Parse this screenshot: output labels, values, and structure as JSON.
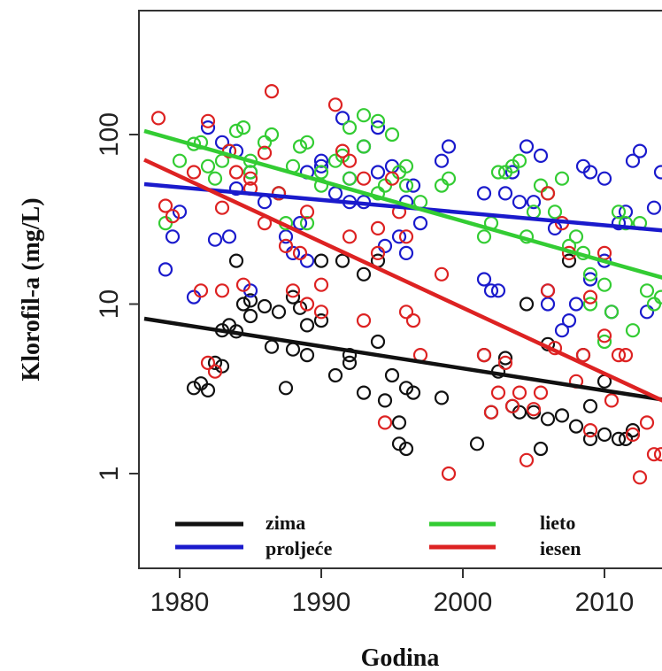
{
  "chart_data": {
    "type": "scatter",
    "title": "",
    "xlabel": "Godina",
    "ylabel": "Klorofil-a (mg/L)",
    "y_scale": "log",
    "xlim": [
      1977.5,
      2014.5
    ],
    "ylim": [
      0.3,
      700
    ],
    "x_ticks": [
      1980,
      1990,
      2000,
      2010
    ],
    "y_ticks": [
      1,
      10,
      100
    ],
    "grid": false,
    "legend_position": "bottom",
    "series": [
      {
        "name": "zima",
        "color": "#111111",
        "trend": {
          "x": [
            1977.5,
            2014.5
          ],
          "y": [
            8.2,
            2.7
          ]
        },
        "points": [
          [
            1981,
            3.2
          ],
          [
            1981.5,
            3.4
          ],
          [
            1982,
            3.1
          ],
          [
            1982.5,
            4.5
          ],
          [
            1983,
            4.3
          ],
          [
            1983,
            7
          ],
          [
            1983.5,
            7.5
          ],
          [
            1984,
            18
          ],
          [
            1984,
            6.9
          ],
          [
            1984.5,
            10
          ],
          [
            1985,
            8.5
          ],
          [
            1985,
            10.5
          ],
          [
            1986,
            9.7
          ],
          [
            1986.5,
            5.6
          ],
          [
            1987,
            9
          ],
          [
            1987.5,
            3.2
          ],
          [
            1988,
            11
          ],
          [
            1988,
            5.4
          ],
          [
            1988.5,
            9.5
          ],
          [
            1989,
            7.5
          ],
          [
            1989,
            5
          ],
          [
            1990,
            8
          ],
          [
            1990,
            18
          ],
          [
            1991,
            3.8
          ],
          [
            1991.5,
            18
          ],
          [
            1992,
            5
          ],
          [
            1992,
            4.5
          ],
          [
            1993,
            15
          ],
          [
            1993,
            3
          ],
          [
            1994,
            6
          ],
          [
            1994,
            18
          ],
          [
            1994.5,
            2.7
          ],
          [
            1995,
            3.8
          ],
          [
            1995.5,
            2
          ],
          [
            1995.5,
            1.5
          ],
          [
            1996,
            3.2
          ],
          [
            1996,
            1.4
          ],
          [
            1996.5,
            3
          ],
          [
            1998.5,
            2.8
          ],
          [
            2001,
            1.5
          ],
          [
            2001.5,
            5
          ],
          [
            2002,
            2.3
          ],
          [
            2002.5,
            4
          ],
          [
            2003,
            4.8
          ],
          [
            2003.5,
            2.5
          ],
          [
            2004,
            2.3
          ],
          [
            2004.5,
            10
          ],
          [
            2005,
            2.3
          ],
          [
            2005.5,
            1.4
          ],
          [
            2006,
            5.8
          ],
          [
            2006,
            2.1
          ],
          [
            2007,
            2.2
          ],
          [
            2007.5,
            18
          ],
          [
            2008,
            1.9
          ],
          [
            2008.5,
            5
          ],
          [
            2009,
            2.5
          ],
          [
            2009,
            1.6
          ],
          [
            2010,
            3.5
          ],
          [
            2010,
            1.7
          ],
          [
            2011,
            1.6
          ],
          [
            2011.5,
            1.6
          ],
          [
            2012,
            1.8
          ]
        ]
      },
      {
        "name": "proljeće",
        "color": "#1a1acc",
        "trend": {
          "x": [
            1977.5,
            2014.5
          ],
          "y": [
            51,
            27
          ]
        },
        "points": [
          [
            1979,
            16
          ],
          [
            1979.5,
            25
          ],
          [
            1980,
            35
          ],
          [
            1981,
            11
          ],
          [
            1982,
            110
          ],
          [
            1982.5,
            24
          ],
          [
            1983,
            90
          ],
          [
            1983.5,
            25
          ],
          [
            1984,
            48
          ],
          [
            1984,
            80
          ],
          [
            1985,
            60
          ],
          [
            1985,
            12
          ],
          [
            1986,
            40
          ],
          [
            1987,
            45
          ],
          [
            1987.5,
            25
          ],
          [
            1988,
            20
          ],
          [
            1988.5,
            30
          ],
          [
            1989,
            60
          ],
          [
            1989,
            18
          ],
          [
            1990,
            70
          ],
          [
            1990,
            65
          ],
          [
            1991,
            45
          ],
          [
            1991.5,
            125
          ],
          [
            1992,
            55
          ],
          [
            1992,
            40
          ],
          [
            1993,
            85
          ],
          [
            1993,
            40
          ],
          [
            1994,
            60
          ],
          [
            1994,
            110
          ],
          [
            1994.5,
            22
          ],
          [
            1995,
            65
          ],
          [
            1995.5,
            25
          ],
          [
            1996,
            40
          ],
          [
            1996,
            20
          ],
          [
            1996.5,
            50
          ],
          [
            1997,
            30
          ],
          [
            1998.5,
            70
          ],
          [
            1999,
            85
          ],
          [
            2001.5,
            45
          ],
          [
            2001.5,
            14
          ],
          [
            2002,
            12
          ],
          [
            2002.5,
            12
          ],
          [
            2003,
            45
          ],
          [
            2003.5,
            60
          ],
          [
            2004,
            40
          ],
          [
            2004.5,
            85
          ],
          [
            2005,
            40
          ],
          [
            2005.5,
            75
          ],
          [
            2006,
            12
          ],
          [
            2006,
            10
          ],
          [
            2006.5,
            28
          ],
          [
            2007,
            7
          ],
          [
            2007.5,
            8
          ],
          [
            2008,
            10
          ],
          [
            2008.5,
            65
          ],
          [
            2009,
            60
          ],
          [
            2009,
            14
          ],
          [
            2010,
            55
          ],
          [
            2010,
            18
          ],
          [
            2010.5,
            9
          ],
          [
            2011,
            30
          ],
          [
            2011.5,
            35
          ],
          [
            2012,
            70
          ],
          [
            2012.5,
            80
          ],
          [
            2013,
            9
          ],
          [
            2013.5,
            37
          ],
          [
            2014,
            60
          ]
        ]
      },
      {
        "name": "lieto",
        "color": "#33cc33",
        "trend": {
          "x": [
            1977.5,
            2014.5
          ],
          "y": [
            105,
            14
          ]
        },
        "points": [
          [
            1979,
            30
          ],
          [
            1980,
            70
          ],
          [
            1981,
            88
          ],
          [
            1981.5,
            90
          ],
          [
            1982,
            65
          ],
          [
            1982.5,
            55
          ],
          [
            1983,
            70
          ],
          [
            1983.5,
            80
          ],
          [
            1984,
            105
          ],
          [
            1984.5,
            110
          ],
          [
            1985,
            60
          ],
          [
            1985,
            70
          ],
          [
            1986,
            90
          ],
          [
            1986.5,
            100
          ],
          [
            1987,
            45
          ],
          [
            1987.5,
            30
          ],
          [
            1988,
            65
          ],
          [
            1988.5,
            85
          ],
          [
            1989,
            90
          ],
          [
            1989,
            30
          ],
          [
            1990,
            50
          ],
          [
            1990,
            60
          ],
          [
            1991,
            70
          ],
          [
            1991.5,
            75
          ],
          [
            1992,
            110
          ],
          [
            1992,
            55
          ],
          [
            1993,
            130
          ],
          [
            1993,
            85
          ],
          [
            1994,
            45
          ],
          [
            1994,
            120
          ],
          [
            1994.5,
            50
          ],
          [
            1995,
            100
          ],
          [
            1995.5,
            60
          ],
          [
            1996,
            65
          ],
          [
            1996,
            50
          ],
          [
            1997,
            40
          ],
          [
            1998.5,
            50
          ],
          [
            1999,
            55
          ],
          [
            2001.5,
            25
          ],
          [
            2002,
            30
          ],
          [
            2002.5,
            60
          ],
          [
            2003,
            60
          ],
          [
            2003.5,
            65
          ],
          [
            2004,
            70
          ],
          [
            2004.5,
            25
          ],
          [
            2005,
            35
          ],
          [
            2005.5,
            50
          ],
          [
            2006,
            45
          ],
          [
            2006.5,
            35
          ],
          [
            2007,
            55
          ],
          [
            2007.5,
            22
          ],
          [
            2008,
            25
          ],
          [
            2008.5,
            20
          ],
          [
            2009,
            15
          ],
          [
            2009,
            10
          ],
          [
            2010,
            6
          ],
          [
            2010,
            13
          ],
          [
            2010.5,
            9
          ],
          [
            2011,
            35
          ],
          [
            2011.5,
            30
          ],
          [
            2012,
            7
          ],
          [
            2012.5,
            30
          ],
          [
            2013,
            12
          ],
          [
            2013.5,
            10
          ],
          [
            2014,
            11
          ]
        ]
      },
      {
        "name": "iesen",
        "color": "#dd2222",
        "trend": {
          "x": [
            1977.5,
            2014.5
          ],
          "y": [
            71,
            2.6
          ]
        },
        "points": [
          [
            1978.5,
            125
          ],
          [
            1979,
            38
          ],
          [
            1979.5,
            33
          ],
          [
            1981,
            60
          ],
          [
            1981.5,
            12
          ],
          [
            1982,
            4.5
          ],
          [
            1982,
            120
          ],
          [
            1982.5,
            4
          ],
          [
            1983,
            37
          ],
          [
            1983,
            12
          ],
          [
            1983.5,
            80
          ],
          [
            1984,
            60
          ],
          [
            1984.5,
            13
          ],
          [
            1985,
            55
          ],
          [
            1985,
            48
          ],
          [
            1986,
            78
          ],
          [
            1986,
            30
          ],
          [
            1986.5,
            180
          ],
          [
            1987,
            45
          ],
          [
            1987.5,
            22
          ],
          [
            1988,
            12
          ],
          [
            1988.5,
            20
          ],
          [
            1989,
            35
          ],
          [
            1989,
            10
          ],
          [
            1990,
            9
          ],
          [
            1990,
            13
          ],
          [
            1991,
            150
          ],
          [
            1991.5,
            80
          ],
          [
            1992,
            70
          ],
          [
            1992,
            25
          ],
          [
            1993,
            55
          ],
          [
            1993,
            8
          ],
          [
            1994,
            28
          ],
          [
            1994,
            20
          ],
          [
            1994.5,
            2
          ],
          [
            1995,
            55
          ],
          [
            1995.5,
            35
          ],
          [
            1996,
            25
          ],
          [
            1996,
            9
          ],
          [
            1996.5,
            8
          ],
          [
            1997,
            5
          ],
          [
            1998.5,
            15
          ],
          [
            1999,
            1
          ],
          [
            2001.5,
            5
          ],
          [
            2002,
            2.3
          ],
          [
            2002.5,
            3
          ],
          [
            2003,
            4.5
          ],
          [
            2003.5,
            2.5
          ],
          [
            2004,
            3
          ],
          [
            2004.5,
            1.2
          ],
          [
            2005,
            2.4
          ],
          [
            2005.5,
            3
          ],
          [
            2006,
            12
          ],
          [
            2006,
            45
          ],
          [
            2006.5,
            5.5
          ],
          [
            2007,
            30
          ],
          [
            2007.5,
            20
          ],
          [
            2008,
            3.5
          ],
          [
            2008.5,
            5
          ],
          [
            2009,
            1.8
          ],
          [
            2009,
            11
          ],
          [
            2010,
            6.5
          ],
          [
            2010,
            20
          ],
          [
            2010.5,
            2.7
          ],
          [
            2011,
            5
          ],
          [
            2011.5,
            5
          ],
          [
            2012,
            1.7
          ],
          [
            2012.5,
            0.95
          ],
          [
            2013,
            2
          ],
          [
            2013.5,
            1.3
          ],
          [
            2014,
            1.3
          ]
        ]
      }
    ]
  }
}
